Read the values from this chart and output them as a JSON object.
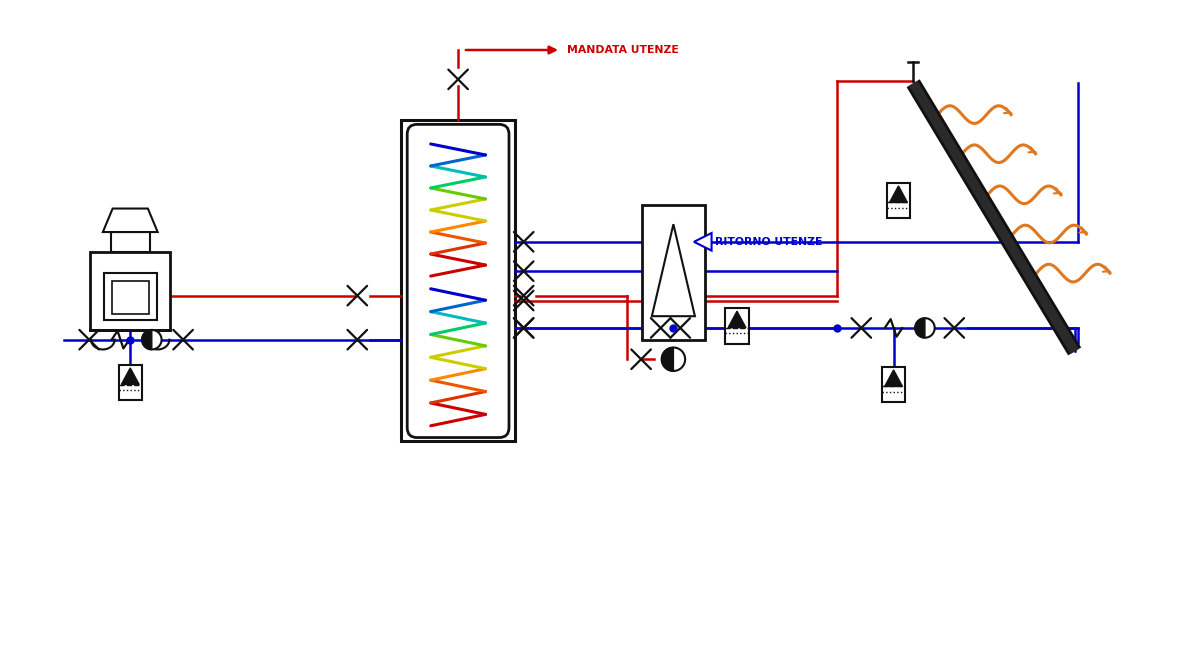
{
  "bg": "#ffffff",
  "red": "#cc0000",
  "blue": "#0000cc",
  "black": "#111111",
  "orange": "#e07820",
  "label_mandata": "MANDATA UTENZE",
  "label_ritorno": "RITORNO UTENZE",
  "coil_colors_upper": [
    "#cc0000",
    "#dd3300",
    "#ee5500",
    "#ff8800",
    "#cccc00",
    "#66cc00",
    "#00cc66",
    "#00bbbb",
    "#0066cc",
    "#0000cc"
  ],
  "coil_colors_lower": [
    "#cc0000",
    "#dd3300",
    "#ee5500",
    "#ff8800",
    "#cccc00",
    "#66cc00",
    "#00cc66",
    "#00bbbb",
    "#0066cc",
    "#0000cc"
  ]
}
